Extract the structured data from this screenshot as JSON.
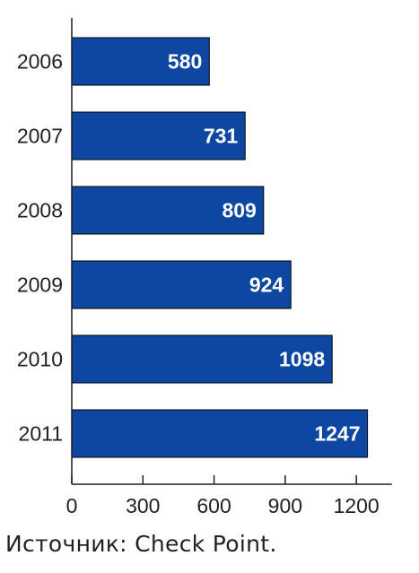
{
  "chart_data": {
    "type": "bar",
    "orientation": "horizontal",
    "categories": [
      "2006",
      "2007",
      "2008",
      "2009",
      "2010",
      "2011"
    ],
    "values": [
      580,
      731,
      809,
      924,
      1098,
      1247
    ],
    "xlim": [
      0,
      1350
    ],
    "xticks": [
      0,
      300,
      600,
      900,
      1200
    ],
    "grid": false,
    "data_labels": true,
    "bar_color": "#0d47a1",
    "bar_border_color": "#000000",
    "title": "",
    "xlabel": "",
    "ylabel": ""
  },
  "source_note": "Источник: Check Point."
}
